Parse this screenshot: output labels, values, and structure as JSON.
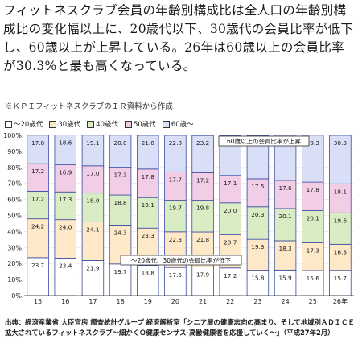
{
  "paragraph": "フィットネスクラブ会員の年齢別構成比は全人口の年齢別構成比の変化幅以上に、20歳代以下、30歳代の会員比率が低下し、60歳以上が上昇している。26年は60歳以上の会員比率が30.3%と最も高くなっている。",
  "note": "※ＫＰＩフィットネスクラブのＩＲ資料から作成",
  "source": "出典：経済産業省 大臣官房 調査統計グループ 経済解析室「シニア層の健康志向の高まり、そして地域別ＡＤＩＣＥ 拡大されているフィットネスクラブ～細かくＯ健康センサス-高齢健康者を応援していく～」（平成27年2月）",
  "chart_data": {
    "type": "bar",
    "stacked": true,
    "categories": [
      "15",
      "16",
      "17",
      "18",
      "19",
      "20",
      "21",
      "22",
      "23",
      "24",
      "25",
      "26年"
    ],
    "ylim": [
      0,
      100
    ],
    "yticks": [
      "0%",
      "10%",
      "20%",
      "30%",
      "40%",
      "50%",
      "60%",
      "70%",
      "80%",
      "90%",
      "100%"
    ],
    "series": [
      {
        "name": "～20歳代",
        "color": "#ffffff",
        "values": [
          23.7,
          23.4,
          21.9,
          19.7,
          18.8,
          17.5,
          17.9,
          17.2,
          15.8,
          15.9,
          15.6,
          15.7
        ]
      },
      {
        "name": "30歳代",
        "color": "#fde8c8",
        "values": [
          24.2,
          24.0,
          24.1,
          24.3,
          23.3,
          22.3,
          21.8,
          20.7,
          19.3,
          18.3,
          17.3,
          16.3
        ]
      },
      {
        "name": "40歳代",
        "color": "#d9ecc4",
        "values": [
          17.2,
          17.3,
          18.0,
          18.8,
          19.1,
          19.7,
          19.8,
          20.0,
          20.3,
          20.1,
          20.1,
          19.6
        ]
      },
      {
        "name": "50歳代",
        "color": "#f2cde6",
        "values": [
          17.2,
          16.9,
          17.0,
          17.3,
          17.8,
          17.7,
          17.2,
          17.1,
          17.5,
          17.6,
          17.8,
          18.1
        ]
      },
      {
        "name": "60歳～",
        "color": "#d8dff6",
        "values": [
          17.8,
          18.6,
          19.1,
          20.0,
          21.0,
          22.8,
          23.2,
          24.9,
          27.0,
          28.2,
          29.3,
          30.3
        ]
      }
    ],
    "annotations": [
      "60歳以上の会員比率が上昇",
      "～20歳代、30歳代の会員比率が低下"
    ]
  }
}
